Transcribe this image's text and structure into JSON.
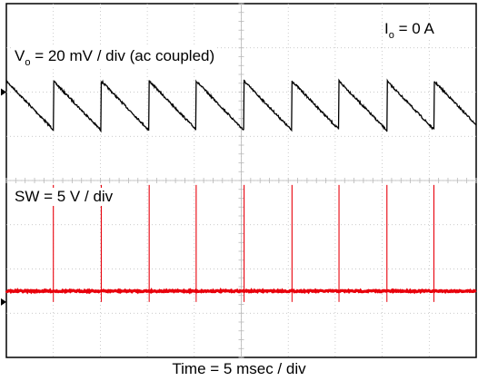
{
  "chart_data": {
    "type": "line",
    "title": "",
    "grid": true,
    "time_axis_label": "Time = 5 msec / div",
    "horizontal_divisions": 10,
    "vertical_divisions": 8,
    "annotations": {
      "load_prefix": "I",
      "load_sub": "o",
      "load_value": " = 0 A",
      "ch1_prefix": "V",
      "ch1_sub": "o",
      "ch1_value": " = 20 mV / div (ac coupled)",
      "ch2_label": "SW = 5 V / div"
    },
    "series": [
      {
        "name": "Vo",
        "color": "#000000",
        "units": "mV",
        "scale_per_div": 20,
        "coupling": "ac",
        "waveform": "sawtooth",
        "period_ms": 5.0,
        "first_reset_ms": 5.0,
        "peak_mV": 5,
        "trough_mV": -17,
        "reset_times_ms": [
          5.0,
          10.1,
          15.2,
          20.2,
          25.3,
          30.4,
          35.4,
          40.5,
          45.5
        ]
      },
      {
        "name": "SW",
        "color": "#e8000b",
        "units": "V",
        "scale_per_div": 5,
        "baseline_V": 0,
        "pulse_height_V": 12,
        "pulse_times_ms": [
          5.0,
          10.1,
          15.2,
          20.2,
          25.3,
          30.4,
          35.4,
          40.5,
          45.5
        ]
      }
    ],
    "trace_colors": {
      "vo": "#000000",
      "sw": "#e8000b",
      "grid": "#b8b8b8"
    }
  }
}
